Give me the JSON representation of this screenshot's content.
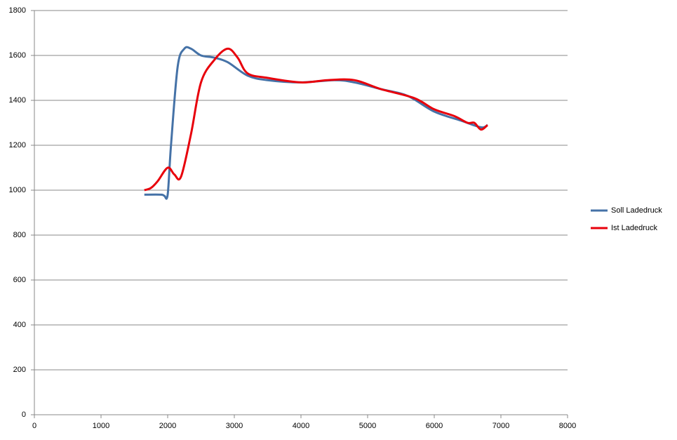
{
  "chart_data": {
    "type": "line",
    "series": [
      {
        "name": "Soll Ladedruck",
        "color": "#4572a7",
        "x": [
          1650,
          1900,
          1950,
          2000,
          2050,
          2150,
          2250,
          2350,
          2500,
          2700,
          2900,
          3200,
          3500,
          4000,
          4500,
          4800,
          5200,
          5600,
          6000,
          6400,
          6700,
          6800
        ],
        "values": [
          980,
          980,
          975,
          980,
          1200,
          1550,
          1630,
          1630,
          1600,
          1590,
          1570,
          1510,
          1490,
          1480,
          1490,
          1480,
          1450,
          1420,
          1350,
          1310,
          1280,
          1290
        ]
      },
      {
        "name": "Ist Ladedruck",
        "color": "#e8000b",
        "x": [
          1650,
          1750,
          1850,
          2000,
          2100,
          2200,
          2350,
          2500,
          2700,
          2900,
          3050,
          3200,
          3500,
          4000,
          4400,
          4800,
          5200,
          5700,
          6000,
          6300,
          6500,
          6600,
          6700,
          6800
        ],
        "values": [
          1000,
          1010,
          1040,
          1100,
          1070,
          1060,
          1250,
          1480,
          1580,
          1630,
          1590,
          1520,
          1500,
          1480,
          1490,
          1490,
          1450,
          1410,
          1360,
          1330,
          1300,
          1300,
          1270,
          1290
        ]
      }
    ],
    "xlim": [
      0,
      8000
    ],
    "xticks": [
      0,
      1000,
      2000,
      3000,
      4000,
      5000,
      6000,
      7000,
      8000
    ],
    "ylim": [
      0,
      1800
    ],
    "yticks": [
      0,
      200,
      400,
      600,
      800,
      1000,
      1200,
      1400,
      1600,
      1800
    ],
    "grid": true,
    "legend": "right"
  }
}
